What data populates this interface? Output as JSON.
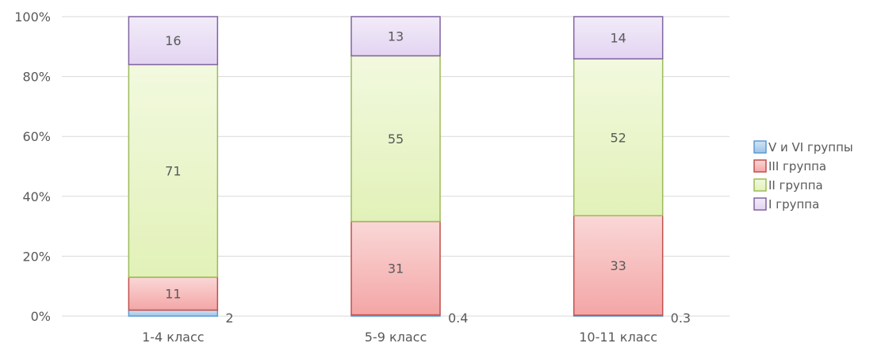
{
  "chart_data": {
    "type": "bar",
    "stacked": true,
    "percent_stacked": true,
    "categories": [
      "1-4 класс",
      "5-9 класс",
      "10-11 класс"
    ],
    "series": [
      {
        "name": "V и VI группы",
        "values": [
          2,
          0.4,
          0.3
        ],
        "color": "#9DC3E6"
      },
      {
        "name": "III группа",
        "values": [
          11,
          31,
          33
        ],
        "color": "#F4A6A6"
      },
      {
        "name": "II группа",
        "values": [
          71,
          55,
          52
        ],
        "color": "#E2F1B8"
      },
      {
        "name": "I группа",
        "values": [
          16,
          13,
          14
        ],
        "color": "#E3D4F2"
      }
    ],
    "border_colors": [
      "#5B9BD5",
      "#C0504D",
      "#9BBB59",
      "#8064A2"
    ],
    "y_ticks": [
      "0%",
      "20%",
      "40%",
      "60%",
      "80%",
      "100%"
    ],
    "ylim": [
      0,
      100
    ],
    "grid": true,
    "legend_position": "right"
  }
}
